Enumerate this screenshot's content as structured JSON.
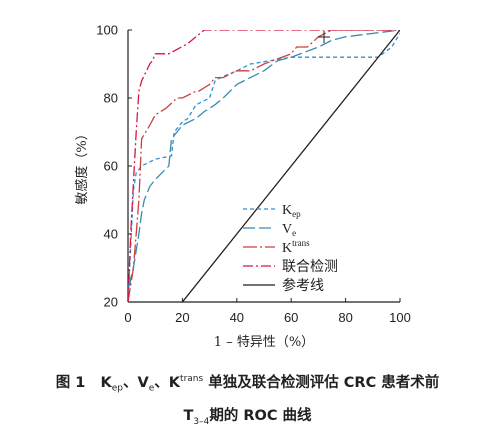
{
  "figure": {
    "caption_line1": {
      "fig_no": "图 1",
      "k_ep": "K",
      "k_ep_sub": "ep",
      "sep1": "、",
      "v_e": "V",
      "v_e_sub": "e",
      "sep2": "、",
      "k_trans": "K",
      "k_trans_sup": "trans",
      "rest": " 单独及联合检测评估 CRC 患者术前"
    },
    "caption_line2": {
      "t": "T",
      "t_sub": "3–4",
      "rest": "期的 ROC 曲线"
    }
  },
  "chart_data": {
    "type": "line",
    "xlabel": "1 – 特异性（%）",
    "ylabel": "敏感度（%）",
    "xlim": [
      0,
      100
    ],
    "ylim": [
      20,
      100
    ],
    "xticks": [
      0,
      20,
      40,
      60,
      80,
      100
    ],
    "yticks": [
      20,
      40,
      60,
      80,
      100
    ],
    "grid": false,
    "legend_position": "bottom-right",
    "series": [
      {
        "name": "K",
        "name_sub": "ep",
        "color": "#2f8fd8",
        "dash": "4,3",
        "x": [
          0,
          2,
          3,
          5,
          10,
          16,
          17,
          20,
          22,
          25,
          30,
          32,
          34,
          40,
          45,
          60,
          75,
          80,
          92,
          97,
          100
        ],
        "y": [
          20,
          53,
          58,
          60,
          62,
          63,
          70,
          73,
          74,
          78,
          80,
          85,
          86,
          88,
          90,
          92,
          92,
          92,
          92,
          95,
          99
        ]
      },
      {
        "name": "V",
        "name_sub": "e",
        "color": "#3a8bb0",
        "dash": "12,4",
        "x": [
          0,
          1,
          2,
          4,
          5,
          6,
          8,
          10,
          15,
          16,
          18,
          20,
          25,
          28,
          32,
          35,
          40,
          45,
          50,
          55,
          60,
          70,
          75,
          80,
          90,
          100
        ],
        "y": [
          20,
          27,
          30,
          40,
          46,
          50,
          54,
          56,
          60,
          68,
          70,
          72,
          74,
          76,
          78,
          80,
          84,
          86,
          88,
          91,
          92,
          95,
          97,
          98,
          99,
          100
        ]
      },
      {
        "name": "K",
        "name_sup": "trans",
        "color": "#c74242",
        "dash": "14,3,2,3",
        "x": [
          0,
          2,
          3,
          4,
          5,
          8,
          10,
          14,
          18,
          20,
          25,
          26,
          30,
          32,
          35,
          40,
          45,
          50,
          60,
          62,
          66,
          70,
          75,
          80,
          90,
          100
        ],
        "y": [
          20,
          30,
          40,
          50,
          68,
          72,
          75,
          77,
          80,
          80,
          82,
          82,
          84,
          86,
          86,
          88,
          88,
          90,
          93,
          95,
          95,
          98,
          100,
          100,
          100,
          100
        ]
      },
      {
        "name": "联合检测",
        "color": "#d9163d",
        "dash": "10,3,2,3",
        "x": [
          0,
          1,
          2,
          3,
          4,
          5,
          8,
          9,
          10,
          12,
          15,
          22,
          25,
          28,
          30,
          40,
          50,
          60,
          80,
          100
        ],
        "y": [
          20,
          40,
          55,
          70,
          82,
          85,
          90,
          91,
          93,
          93,
          93,
          96,
          98,
          100,
          100,
          100,
          100,
          100,
          100,
          100
        ]
      },
      {
        "name": "参考线",
        "color": "#231f20",
        "dash": "",
        "x": [
          0,
          100
        ],
        "y": [
          0,
          100
        ]
      }
    ]
  }
}
